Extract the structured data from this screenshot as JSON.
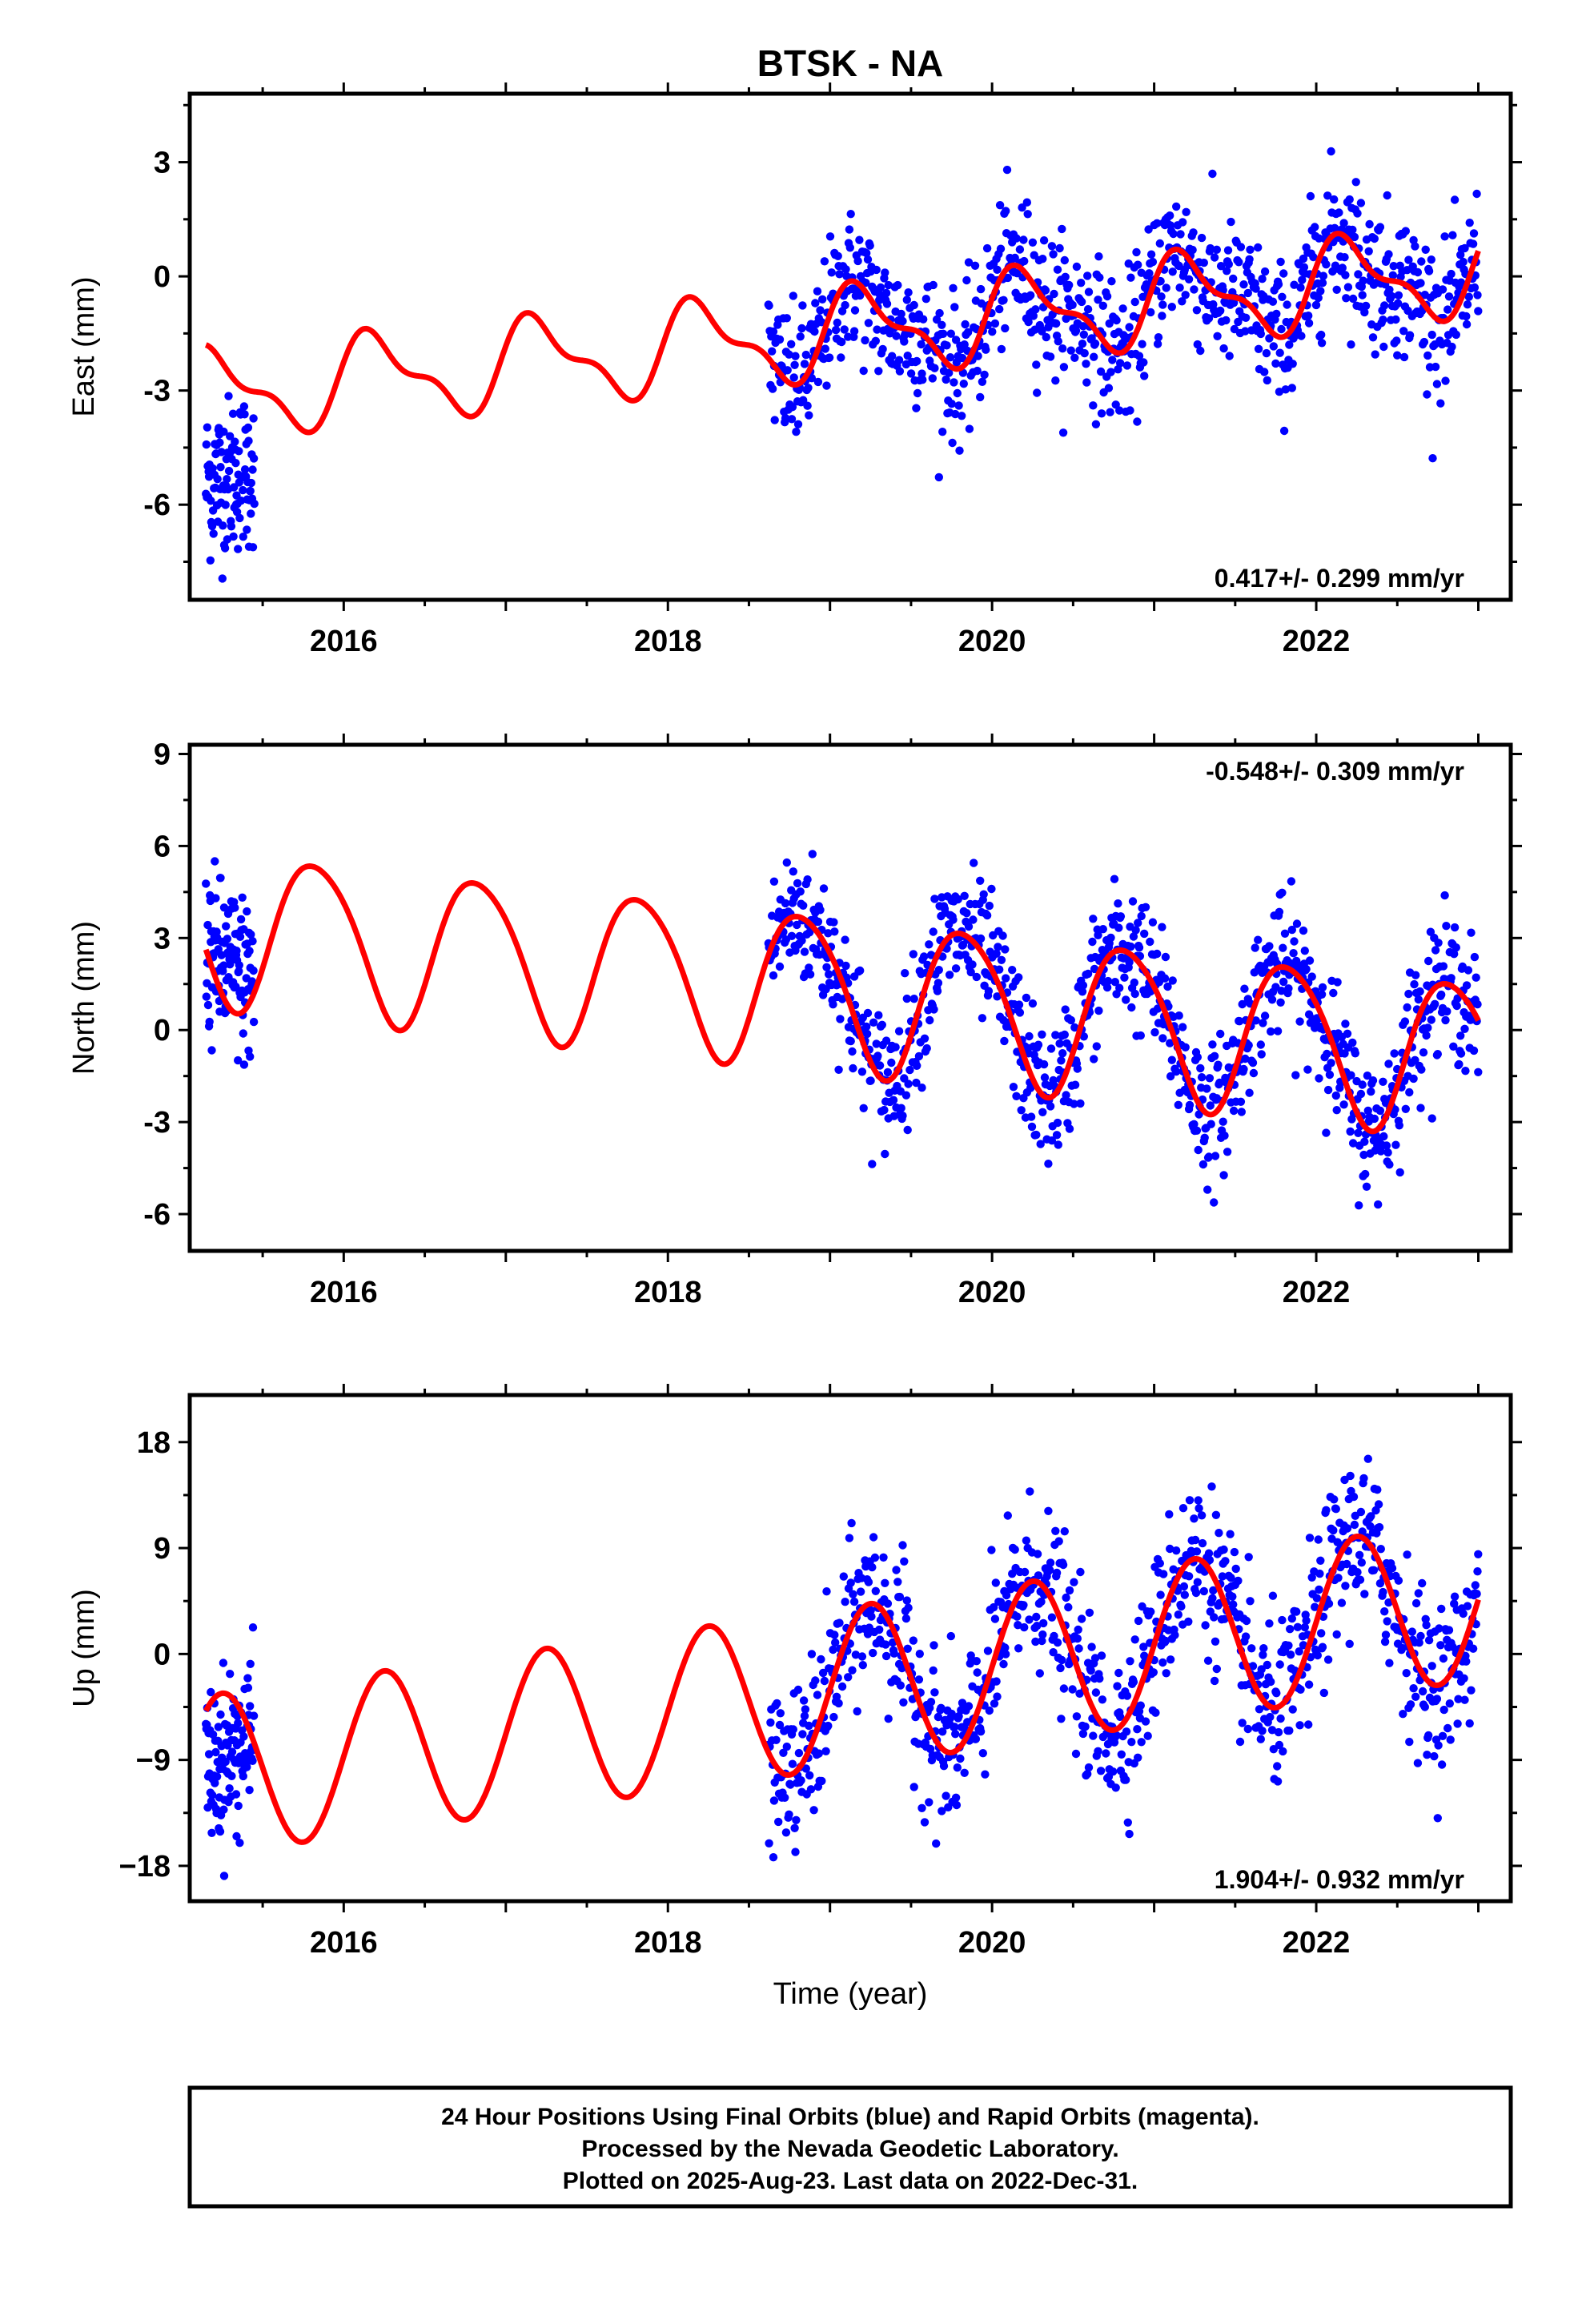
{
  "title": "BTSK - NA",
  "xlabel": "Time (year)",
  "footer": {
    "line1": "24 Hour Positions Using Final Orbits (blue) and Rapid Orbits (magenta).",
    "line2": "Processed by the Nevada Geodetic Laboratory.",
    "line3": "Plotted on 2025-Aug-23. Last data on 2022-Dec-31."
  },
  "colors": {
    "final_orbit_points": "#0000ff",
    "model_fit": "#ff0000",
    "frame": "#000000"
  },
  "chart_data": [
    {
      "type": "scatter",
      "ylabel": "East (mm)",
      "rate_label": "0.417+/- 0.299 mm/yr",
      "rate_position": "bottom-right",
      "xlim": [
        2015.05,
        2023.2
      ],
      "ylim": [
        -8.5,
        4.8
      ],
      "xticks": [
        2016,
        2018,
        2020,
        2022
      ],
      "yticks": [
        -6,
        -3,
        0,
        3
      ],
      "grid": false,
      "series": [
        {
          "kind": "points",
          "segments": [
            {
              "x_start": 2015.15,
              "x_end": 2015.45,
              "trend": [
                [
                  2015.15,
                  -5.4
                ],
                [
                  2015.45,
                  -5.0
                ]
              ],
              "scatter": 1.2
            },
            {
              "x_start": 2018.62,
              "x_end": 2023.0,
              "trend": "follows model",
              "scatter": 1.1
            }
          ]
        },
        {
          "kind": "model",
          "rate_mm_per_yr": 0.417,
          "offset": -1.5,
          "t_ref": 2019.0,
          "annual": {
            "cos": 0.3,
            "sin": 1.0
          },
          "semiannual": {
            "cos": 0.2,
            "sin": 0.4
          },
          "x_range": [
            2015.15,
            2023.0
          ]
        }
      ]
    },
    {
      "type": "scatter",
      "ylabel": "North (mm)",
      "rate_label": "-0.548+/- 0.309 mm/yr",
      "rate_position": "top-right",
      "xlim": [
        2015.05,
        2023.2
      ],
      "ylim": [
        -7.2,
        9.3
      ],
      "xticks": [
        2016,
        2018,
        2020,
        2022
      ],
      "yticks": [
        -6,
        -3,
        0,
        3,
        6,
        9
      ],
      "grid": false,
      "series": [
        {
          "kind": "points",
          "segments": [
            {
              "x_start": 2015.15,
              "x_end": 2015.45,
              "trend": [
                [
                  2015.15,
                  2.5
                ],
                [
                  2015.45,
                  1.5
                ]
              ],
              "scatter": 1.6
            },
            {
              "x_start": 2018.62,
              "x_end": 2023.0,
              "trend": "follows model",
              "scatter": 1.3
            }
          ]
        },
        {
          "kind": "model",
          "rate_mm_per_yr": -0.548,
          "offset": 1.3,
          "t_ref": 2019.0,
          "annual": {
            "cos": 1.2,
            "sin": -2.2
          },
          "semiannual": {
            "cos": 0.0,
            "sin": 0.3
          },
          "x_range": [
            2015.15,
            2023.0
          ]
        }
      ]
    },
    {
      "type": "scatter",
      "ylabel": "Up (mm)",
      "rate_label": "1.904+/- 0.932 mm/yr",
      "rate_position": "bottom-right",
      "xlim": [
        2015.05,
        2023.2
      ],
      "ylim": [
        -21,
        22
      ],
      "xticks": [
        2016,
        2018,
        2020,
        2022
      ],
      "yticks": [
        -18,
        -9,
        0,
        9,
        18
      ],
      "yticklabels": [
        "−18",
        "−9",
        "0",
        "9",
        "18"
      ],
      "grid": false,
      "series": [
        {
          "kind": "points",
          "segments": [
            {
              "x_start": 2015.15,
              "x_end": 2015.45,
              "trend": [
                [
                  2015.15,
                  -10.0
                ],
                [
                  2015.45,
                  -7.0
                ]
              ],
              "scatter": 4.0
            },
            {
              "x_start": 2018.62,
              "x_end": 2023.0,
              "trend": "follows model",
              "scatter": 4.0
            }
          ]
        },
        {
          "kind": "model",
          "rate_mm_per_yr": 1.904,
          "offset": -3.0,
          "t_ref": 2019.0,
          "annual": {
            "cos": 0.0,
            "sin": 6.8
          },
          "semiannual": {
            "cos": 0.0,
            "sin": 0.0
          },
          "x_range": [
            2015.15,
            2023.0
          ]
        }
      ]
    }
  ]
}
